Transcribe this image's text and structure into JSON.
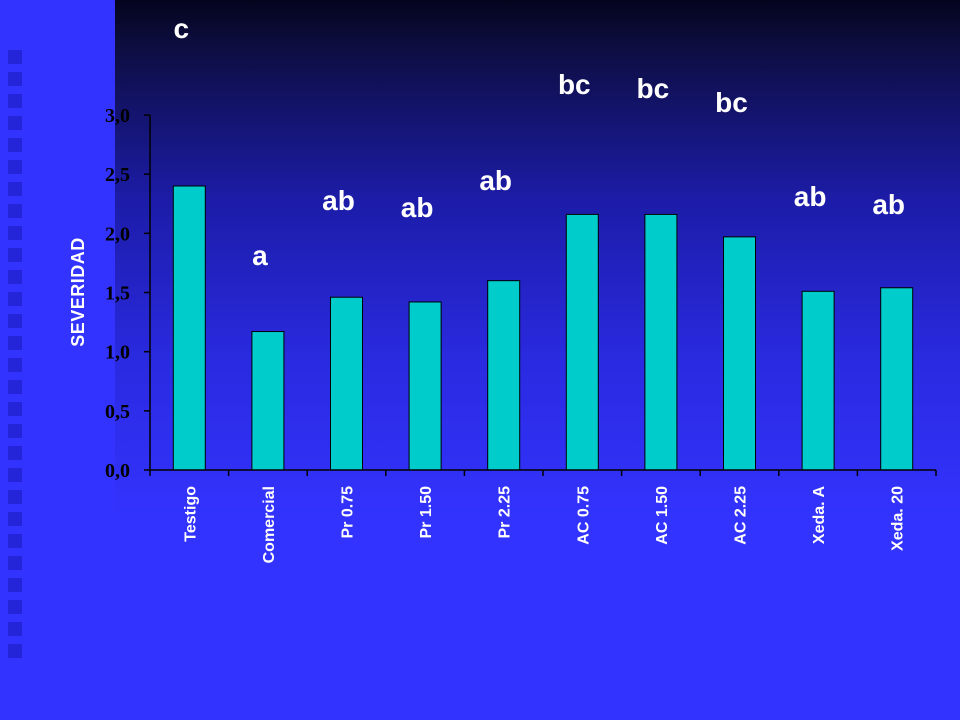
{
  "colors": {
    "background": "#3333ff",
    "bar": "#00cccc",
    "text": "#ffffff",
    "axis": "#000000"
  },
  "chart_data": {
    "type": "bar",
    "categories": [
      "Testigo",
      "Comercial",
      "Pr 0.75",
      "Pr 1.50",
      "Pr 2.25",
      "AC 0.75",
      "AC 1.50",
      "AC 2.25",
      "Xeda.  A",
      "Xeda. 20"
    ],
    "values": [
      2.4,
      1.17,
      1.46,
      1.42,
      1.6,
      2.16,
      2.16,
      1.97,
      1.51,
      1.54
    ],
    "significance_letters": [
      "c",
      "a",
      "ab",
      "ab",
      "ab",
      "bc",
      "bc",
      "bc",
      "ab",
      "ab"
    ],
    "ylabel": "SEVERIDAD",
    "ylim": [
      0,
      3
    ],
    "yticks": [
      "0,0",
      "0,5",
      "1,0",
      "1,5",
      "2,0",
      "2,5",
      "3,0"
    ],
    "grid": false,
    "legend": "none"
  }
}
